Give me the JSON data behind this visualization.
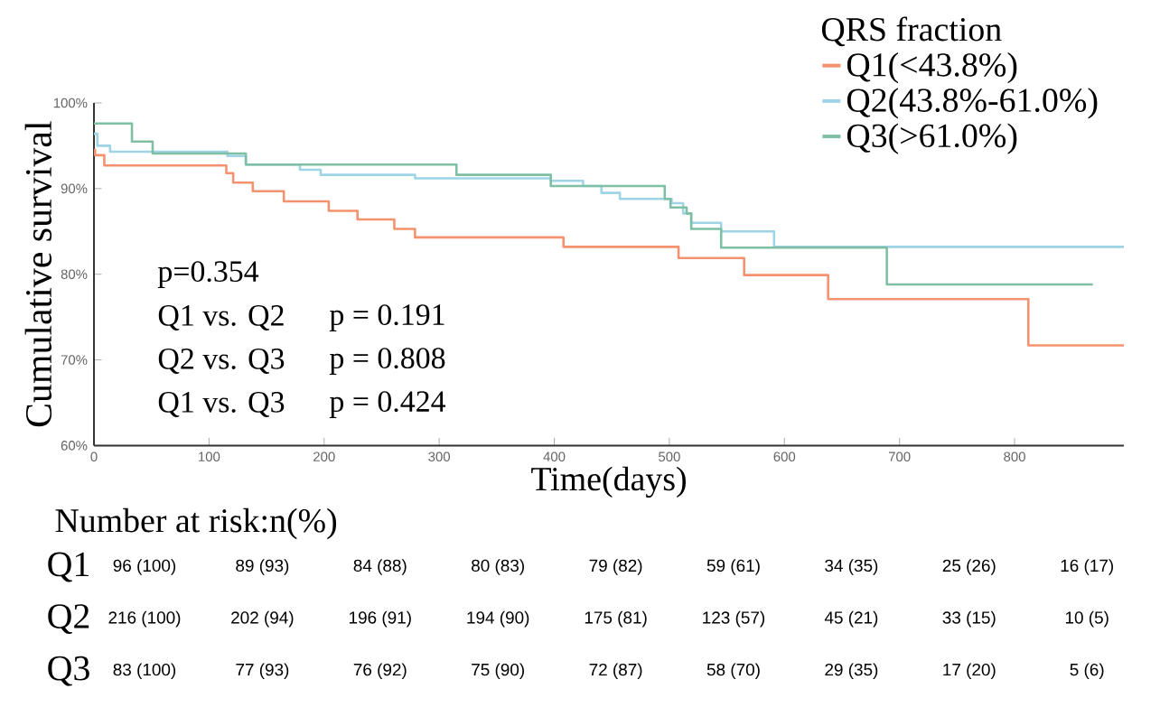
{
  "chart_data": {
    "type": "step",
    "xlabel": "Time(days)",
    "ylabel": "Cumulative survival",
    "legend_title": "QRS fraction",
    "legend": "top right",
    "grid": false,
    "marker": "none",
    "line_style": "solid",
    "xlim": [
      0,
      895
    ],
    "xticks": [
      0,
      100,
      200,
      300,
      400,
      500,
      600,
      700,
      800
    ],
    "ylim": [
      60,
      100
    ],
    "yticks": [
      {
        "value": 60,
        "label": "60%"
      },
      {
        "value": 70,
        "label": "70%"
      },
      {
        "value": 80,
        "label": "80%"
      },
      {
        "value": 90,
        "label": "90%"
      },
      {
        "value": 100,
        "label": "100%"
      }
    ],
    "series": [
      {
        "name": "Q1(<43.8%)",
        "color": "#f4926f",
        "x": [
          0,
          1,
          9,
          115,
          121,
          138,
          165,
          204,
          229,
          261,
          279,
          408,
          508,
          565,
          638,
          812,
          895
        ],
        "values": [
          94.5,
          93.9,
          92.7,
          91.8,
          90.7,
          89.7,
          88.5,
          87.4,
          86.4,
          85.3,
          84.3,
          83.2,
          81.9,
          79.9,
          77.1,
          71.7,
          71.7
        ]
      },
      {
        "name": "Q2(43.8%-61.0%)",
        "color": "#9fd3e6",
        "x": [
          0,
          3,
          14,
          116,
          132,
          179,
          197,
          279,
          397,
          425,
          441,
          457,
          502,
          512,
          519,
          545,
          591,
          895
        ],
        "values": [
          96.4,
          95.0,
          94.3,
          93.8,
          92.8,
          92.2,
          91.6,
          91.2,
          90.9,
          90.3,
          89.5,
          88.8,
          88.3,
          87.1,
          86.0,
          85.0,
          83.2,
          83.2
        ]
      },
      {
        "name": "Q3(>61.0%)",
        "color": "#7fbfa3",
        "x": [
          0,
          33,
          51,
          132,
          315,
          397,
          496,
          501,
          515,
          519,
          545,
          689,
          868
        ],
        "values": [
          97.6,
          95.5,
          94.1,
          92.8,
          91.6,
          90.3,
          88.8,
          87.8,
          87.1,
          85.3,
          83.1,
          78.8,
          78.8
        ]
      }
    ],
    "annotations": [
      "p=0.354",
      "Q1 vs. Q2",
      "p = 0.191",
      "Q2 vs. Q3",
      "p = 0.808",
      "Q1 vs. Q3",
      "p = 0.424",
      "Number at risk:n(%)",
      "Q1",
      "96 (100)",
      "89 (93)",
      "84 (88)",
      "80 (83)",
      "79 (82)",
      "59 (61)",
      "34 (35)",
      "25 (26)",
      "16 (17)",
      "Q2",
      "216 (100)",
      "202 (94)",
      "196 (91)",
      "194 (90)",
      "175 (81)",
      "123 (57)",
      "45 (21)",
      "33 (15)",
      "10 (5)",
      "Q3",
      "83 (100)",
      "77 (93)",
      "76 (92)",
      "75 (90)",
      "72 (87)",
      "58 (70)",
      "29 (35)",
      "17 (20)",
      "5 (6)"
    ]
  }
}
